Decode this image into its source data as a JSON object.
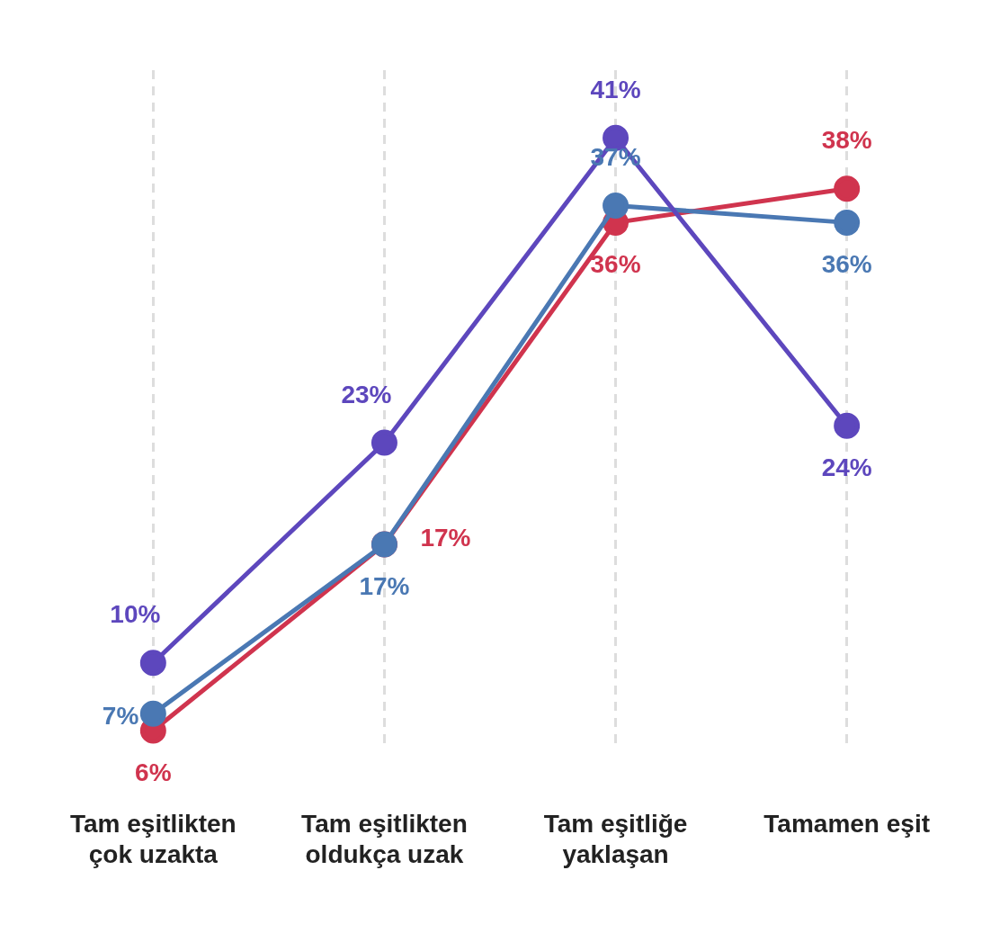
{
  "chart_data": {
    "type": "line",
    "categories": [
      "Tam eşitlikten çok uzakta",
      "Tam eşitlikten oldukça uzak",
      "Tam eşitliğe yaklaşan",
      "Tamamen eşit"
    ],
    "series": [
      {
        "color": "#5d47bd",
        "values": [
          10,
          23,
          41,
          24
        ],
        "value_labels": [
          "10%",
          "23%",
          "41%",
          "24%"
        ]
      },
      {
        "color": "#4a78b3",
        "values": [
          7,
          17,
          37,
          36
        ],
        "value_labels": [
          "7%",
          "17%",
          "37%",
          "36%"
        ]
      },
      {
        "color": "#d0344e",
        "values": [
          6,
          17,
          36,
          38
        ],
        "value_labels": [
          "6%",
          "17%",
          "36%",
          "38%"
        ]
      }
    ],
    "grid": "x",
    "marker": "circle",
    "line_style": "solid",
    "tick_labels": "x",
    "legend": false
  }
}
